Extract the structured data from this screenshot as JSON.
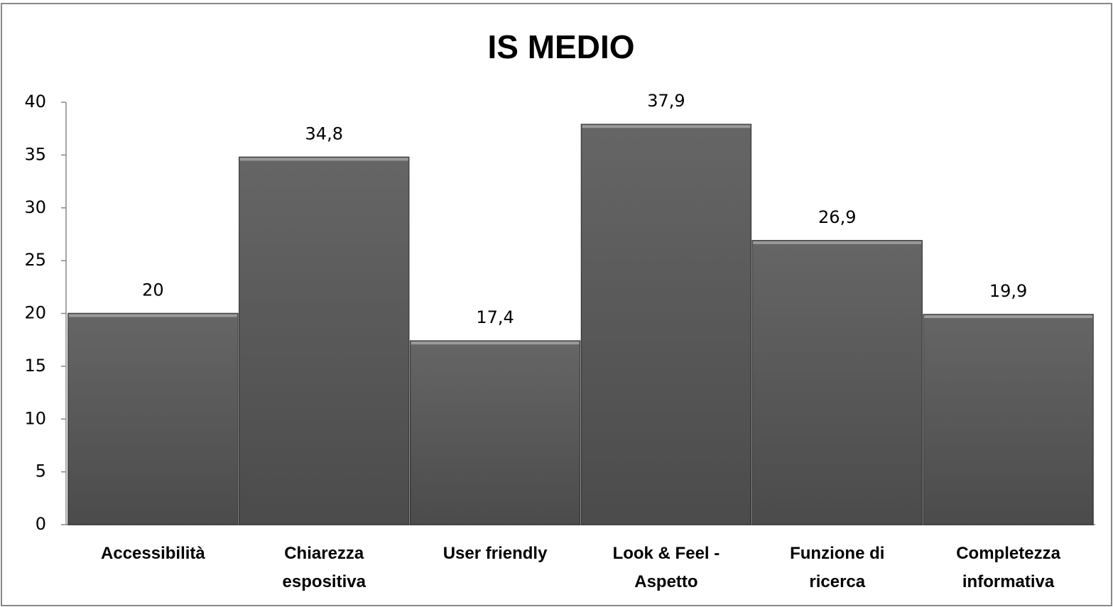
{
  "chart_data": {
    "type": "bar",
    "title": "IS MEDIO",
    "categories": [
      "Accessibilità",
      "Chiarezza espositiva",
      "User friendly",
      "Look & Feel - Aspetto",
      "Funzione di ricerca",
      "Completezza informativa"
    ],
    "values": [
      20,
      34.8,
      17.4,
      37.9,
      26.9,
      19.9
    ],
    "value_labels": [
      "20",
      "34,8",
      "17,4",
      "37,9",
      "26,9",
      "19,9"
    ],
    "color": "#5f5f5f",
    "ylim": [
      0,
      40
    ],
    "yticks": [
      0,
      5,
      10,
      15,
      20,
      25,
      30,
      35,
      40
    ],
    "grid": false
  }
}
